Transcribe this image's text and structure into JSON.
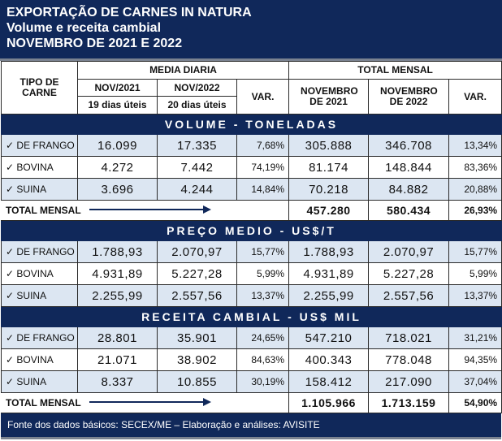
{
  "title": {
    "line1": "EXPORTAÇÃO DE CARNES IN NATURA",
    "line2": "Volume e receita cambial",
    "line3": "NOVEMBRO DE 2021 E 2022"
  },
  "header": {
    "tipo": "TIPO DE CARNE",
    "media": "MEDIA DIARIA",
    "total": "TOTAL MENSAL",
    "nov2021": "NOV/2021",
    "nov2022": "NOV/2022",
    "dias2021": "19 dias úteis",
    "dias2022": "20 dias úteis",
    "var": "VAR.",
    "novembro2021": "NOVEMBRO DE 2021",
    "novembro2022": "NOVEMBRO DE 2022"
  },
  "check": "✓",
  "sections": [
    {
      "title": "VOLUME - TONELADAS",
      "rows": [
        {
          "label": "DE FRANGO",
          "d21": "16.099",
          "d22": "17.335",
          "dv": "7,68%",
          "m21": "305.888",
          "m22": "346.708",
          "mv": "13,34%"
        },
        {
          "label": "BOVINA",
          "d21": "4.272",
          "d22": "7.442",
          "dv": "74,19%",
          "m21": "81.174",
          "m22": "148.844",
          "mv": "83,36%"
        },
        {
          "label": "SUINA",
          "d21": "3.696",
          "d22": "4.244",
          "dv": "14,84%",
          "m21": "70.218",
          "m22": "84.882",
          "mv": "20,88%"
        }
      ],
      "total": {
        "label": "TOTAL MENSAL",
        "m21": "457.280",
        "m22": "580.434",
        "mv": "26,93%"
      }
    },
    {
      "title": "PREÇO MEDIO - US$/T",
      "rows": [
        {
          "label": "DE FRANGO",
          "d21": "1.788,93",
          "d22": "2.070,97",
          "dv": "15,77%",
          "m21": "1.788,93",
          "m22": "2.070,97",
          "mv": "15,77%"
        },
        {
          "label": "BOVINA",
          "d21": "4.931,89",
          "d22": "5.227,28",
          "dv": "5,99%",
          "m21": "4.931,89",
          "m22": "5.227,28",
          "mv": "5,99%"
        },
        {
          "label": "SUINA",
          "d21": "2.255,99",
          "d22": "2.557,56",
          "dv": "13,37%",
          "m21": "2.255,99",
          "m22": "2.557,56",
          "mv": "13,37%"
        }
      ]
    },
    {
      "title": "RECEITA CAMBIAL - US$ MIL",
      "rows": [
        {
          "label": "DE FRANGO",
          "d21": "28.801",
          "d22": "35.901",
          "dv": "24,65%",
          "m21": "547.210",
          "m22": "718.021",
          "mv": "31,21%"
        },
        {
          "label": "BOVINA",
          "d21": "21.071",
          "d22": "38.902",
          "dv": "84,63%",
          "m21": "400.343",
          "m22": "778.048",
          "mv": "94,35%"
        },
        {
          "label": "SUINA",
          "d21": "8.337",
          "d22": "10.855",
          "dv": "30,19%",
          "m21": "158.412",
          "m22": "217.090",
          "mv": "37,04%"
        }
      ],
      "total": {
        "label": "TOTAL MENSAL",
        "m21": "1.105.966",
        "m22": "1.713.159",
        "mv": "54,90%"
      }
    }
  ],
  "footer": "Fonte dos dados básicos: SECEX/ME – Elaboração e análises: AVISITE",
  "colors": {
    "navy": "#10285a",
    "alt_row": "#dce6f2"
  }
}
